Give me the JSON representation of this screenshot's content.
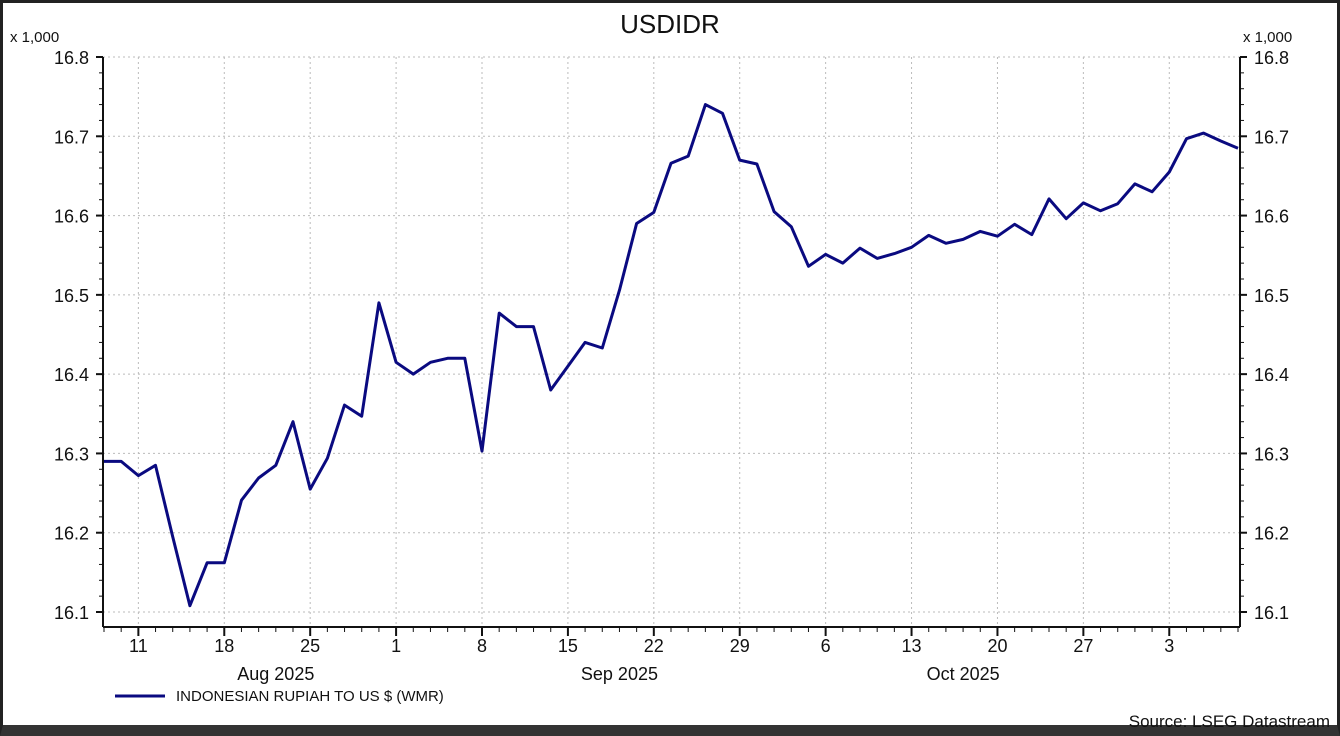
{
  "chart_data": {
    "type": "line",
    "title": "USDIDR",
    "y_unit_label": "x 1,000",
    "ylim": [
      16.1,
      16.8
    ],
    "y_ticks": [
      16.1,
      16.2,
      16.3,
      16.4,
      16.5,
      16.6,
      16.7,
      16.8
    ],
    "y_tick_labels": [
      "16.1",
      "16.2",
      "16.3",
      "16.4",
      "16.5",
      "16.6",
      "16.7",
      "16.8"
    ],
    "x_axis": "business days",
    "x_tick_labels": [
      {
        "date": "2025-08-11",
        "label": "11"
      },
      {
        "date": "2025-08-18",
        "label": "18"
      },
      {
        "date": "2025-08-25",
        "label": "25"
      },
      {
        "date": "2025-09-01",
        "label": "1"
      },
      {
        "date": "2025-09-08",
        "label": "8"
      },
      {
        "date": "2025-09-15",
        "label": "15"
      },
      {
        "date": "2025-09-22",
        "label": "22"
      },
      {
        "date": "2025-09-29",
        "label": "29"
      },
      {
        "date": "2025-10-06",
        "label": "6"
      },
      {
        "date": "2025-10-13",
        "label": "13"
      },
      {
        "date": "2025-10-20",
        "label": "20"
      },
      {
        "date": "2025-10-27",
        "label": "27"
      },
      {
        "date": "2025-11-03",
        "label": "3"
      }
    ],
    "month_labels": [
      {
        "date": "2025-08-21",
        "label": "Aug 2025"
      },
      {
        "date": "2025-09-18",
        "label": "Sep 2025"
      },
      {
        "date": "2025-10-16",
        "label": "Oct 2025"
      }
    ],
    "grid": true,
    "legend_position": "bottom-left",
    "source": "Source: LSEG Datastream",
    "series": [
      {
        "name": "INDONESIAN RUPIAH TO US $ (WMR)",
        "color": "#0a0a80",
        "x": [
          "2025-08-07",
          "2025-08-08",
          "2025-08-11",
          "2025-08-12",
          "2025-08-13",
          "2025-08-14",
          "2025-08-15",
          "2025-08-18",
          "2025-08-19",
          "2025-08-20",
          "2025-08-21",
          "2025-08-22",
          "2025-08-25",
          "2025-08-26",
          "2025-08-27",
          "2025-08-28",
          "2025-08-29",
          "2025-09-01",
          "2025-09-02",
          "2025-09-03",
          "2025-09-04",
          "2025-09-05",
          "2025-09-08",
          "2025-09-09",
          "2025-09-10",
          "2025-09-11",
          "2025-09-12",
          "2025-09-15",
          "2025-09-16",
          "2025-09-17",
          "2025-09-18",
          "2025-09-19",
          "2025-09-22",
          "2025-09-23",
          "2025-09-24",
          "2025-09-25",
          "2025-09-26",
          "2025-09-29",
          "2025-09-30",
          "2025-10-01",
          "2025-10-02",
          "2025-10-03",
          "2025-10-06",
          "2025-10-07",
          "2025-10-08",
          "2025-10-09",
          "2025-10-10",
          "2025-10-13",
          "2025-10-14",
          "2025-10-15",
          "2025-10-16",
          "2025-10-17",
          "2025-10-20",
          "2025-10-21",
          "2025-10-22",
          "2025-10-23",
          "2025-10-24",
          "2025-10-27",
          "2025-10-28",
          "2025-10-29",
          "2025-10-30",
          "2025-10-31",
          "2025-11-03",
          "2025-11-04",
          "2025-11-05",
          "2025-11-06",
          "2025-11-07"
        ],
        "values": [
          16.29,
          16.29,
          16.272,
          16.285,
          16.195,
          16.108,
          16.162,
          16.162,
          16.241,
          16.269,
          16.285,
          16.34,
          16.255,
          16.294,
          16.361,
          16.347,
          16.49,
          16.415,
          16.4,
          16.415,
          16.42,
          16.42,
          16.303,
          16.477,
          16.46,
          16.46,
          16.38,
          16.41,
          16.44,
          16.433,
          16.506,
          16.59,
          16.604,
          16.666,
          16.675,
          16.74,
          16.729,
          16.67,
          16.665,
          16.605,
          16.586,
          16.536,
          16.551,
          16.54,
          16.559,
          16.546,
          16.552,
          16.56,
          16.575,
          16.565,
          16.57,
          16.58,
          16.574,
          16.589,
          16.576,
          16.621,
          16.596,
          16.616,
          16.606,
          16.615,
          16.64,
          16.63,
          16.655,
          16.697,
          16.704,
          16.694,
          16.685
        ]
      }
    ]
  }
}
